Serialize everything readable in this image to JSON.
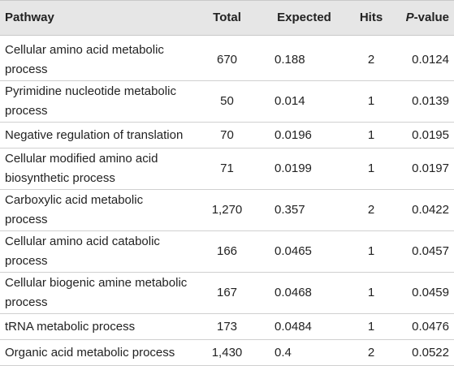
{
  "table": {
    "headers": {
      "pathway": "Pathway",
      "total": "Total",
      "expected": "Expected",
      "hits": "Hits",
      "pvalue_italic": "P",
      "pvalue_rest": "-value"
    },
    "rows": [
      {
        "pathway": "Cellular amino acid metabolic process",
        "total": "670",
        "expected": "0.188",
        "hits": "2",
        "pvalue": "0.0124"
      },
      {
        "pathway": "Pyrimidine nucleotide metabolic process",
        "total": "50",
        "expected": "0.014",
        "hits": "1",
        "pvalue": "0.0139"
      },
      {
        "pathway": "Negative regulation of translation",
        "total": "70",
        "expected": "0.0196",
        "hits": "1",
        "pvalue": "0.0195"
      },
      {
        "pathway": "Cellular modified amino acid biosynthetic process",
        "total": "71",
        "expected": "0.0199",
        "hits": "1",
        "pvalue": "0.0197"
      },
      {
        "pathway": "Carboxylic acid metabolic process",
        "total": "1,270",
        "expected": "0.357",
        "hits": "2",
        "pvalue": "0.0422"
      },
      {
        "pathway": "Cellular amino acid catabolic process",
        "total": "166",
        "expected": "0.0465",
        "hits": "1",
        "pvalue": "0.0457"
      },
      {
        "pathway": "Cellular biogenic amine metabolic process",
        "total": "167",
        "expected": "0.0468",
        "hits": "1",
        "pvalue": "0.0459"
      },
      {
        "pathway": "tRNA metabolic process",
        "total": "173",
        "expected": "0.0484",
        "hits": "1",
        "pvalue": "0.0476"
      },
      {
        "pathway": "Organic acid metabolic process",
        "total": "1,430",
        "expected": "0.4",
        "hits": "2",
        "pvalue": "0.0522"
      }
    ]
  }
}
